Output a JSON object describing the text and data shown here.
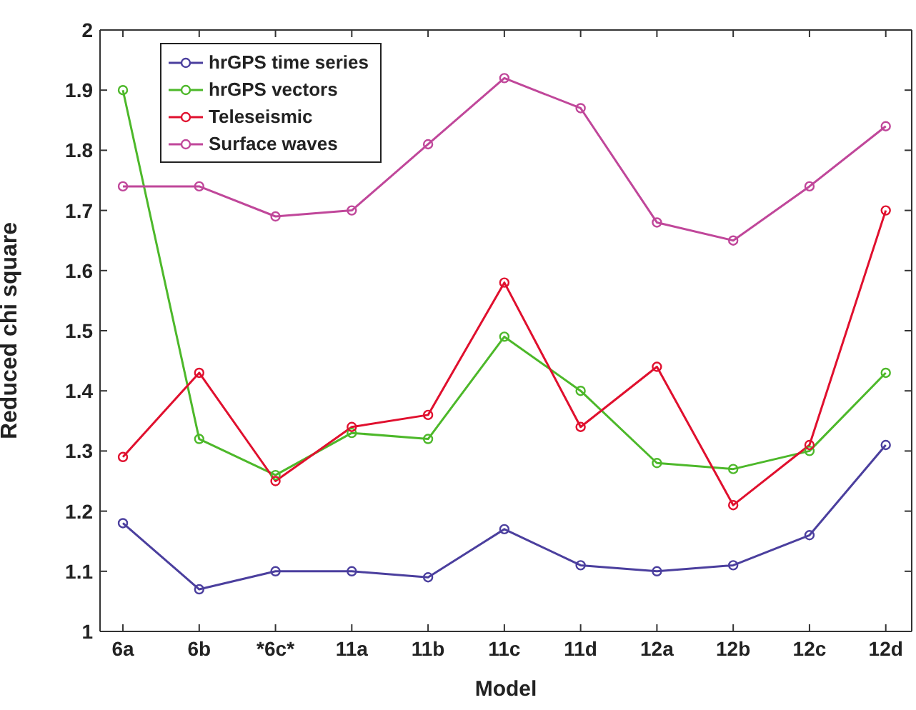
{
  "chart_data": {
    "type": "line",
    "xlabel": "Model",
    "ylabel": "Reduced chi square",
    "categories": [
      "6a",
      "6b",
      "*6c*",
      "11a",
      "11b",
      "11c",
      "11d",
      "12a",
      "12b",
      "12c",
      "12d"
    ],
    "series": [
      {
        "name": "hrGPS time series",
        "color": "#4b3f9e",
        "values": [
          1.18,
          1.07,
          1.1,
          1.1,
          1.09,
          1.17,
          1.11,
          1.1,
          1.11,
          1.16,
          1.31
        ]
      },
      {
        "name": "hrGPS vectors",
        "color": "#4db82a",
        "values": [
          1.9,
          1.32,
          1.26,
          1.33,
          1.32,
          1.49,
          1.4,
          1.28,
          1.27,
          1.3,
          1.43
        ]
      },
      {
        "name": "Teleseismic",
        "color": "#e0102e",
        "values": [
          1.29,
          1.43,
          1.25,
          1.34,
          1.36,
          1.58,
          1.34,
          1.44,
          1.21,
          1.31,
          1.7
        ]
      },
      {
        "name": "Surface waves",
        "color": "#c0479a",
        "values": [
          1.74,
          1.74,
          1.69,
          1.7,
          1.81,
          1.92,
          1.87,
          1.68,
          1.65,
          1.74,
          1.84
        ]
      }
    ],
    "ylim": [
      1,
      2
    ],
    "yticks": [
      1,
      1.1,
      1.2,
      1.3,
      1.4,
      1.5,
      1.6,
      1.7,
      1.8,
      1.9,
      2
    ],
    "legend": "top left",
    "marker": "circle",
    "line_style": "solid",
    "grid": false
  }
}
